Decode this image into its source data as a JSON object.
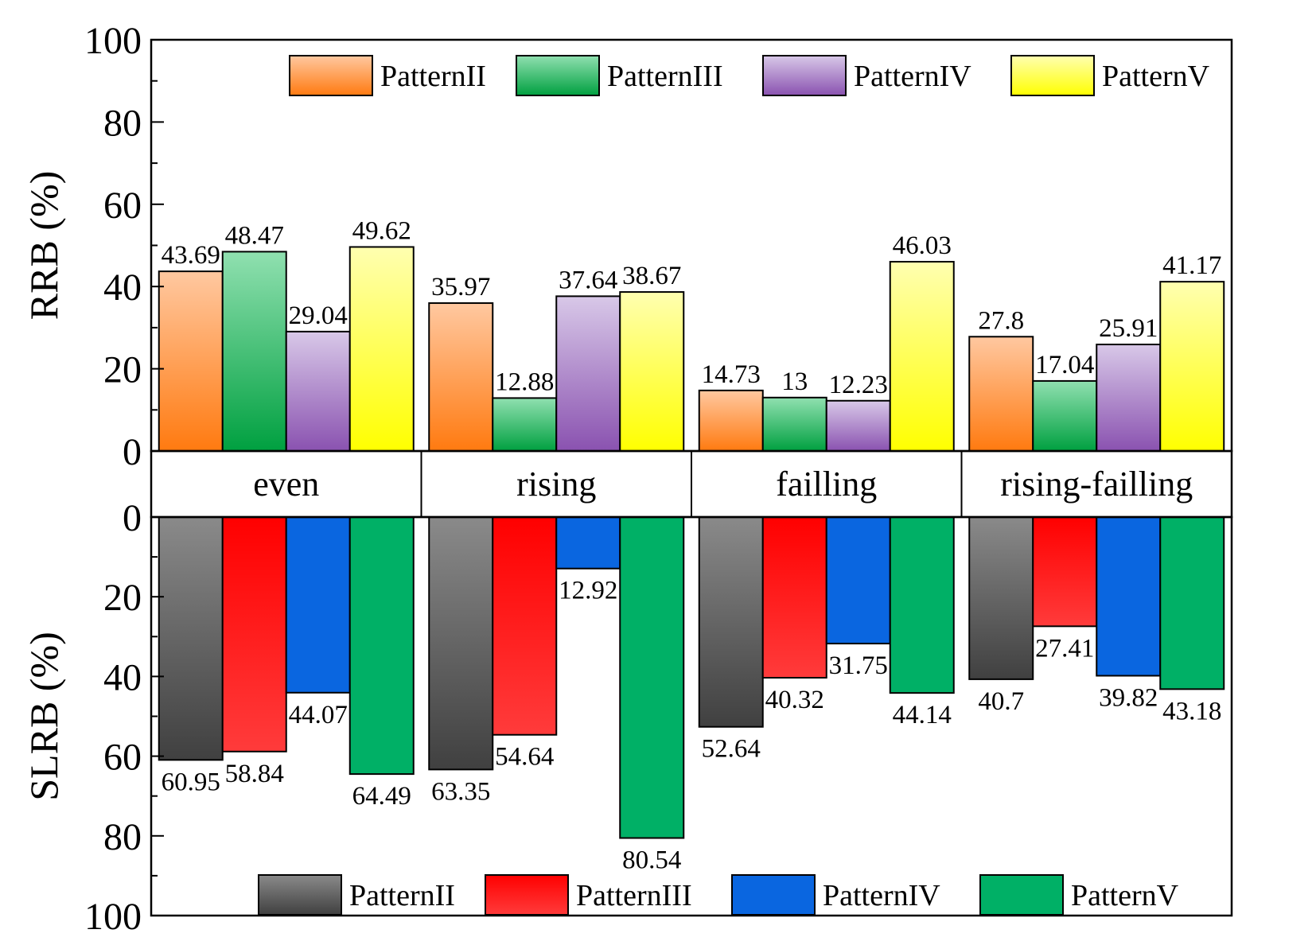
{
  "chart_data": [
    {
      "type": "bar",
      "panel": "top",
      "ylabel": "RRB (%)",
      "ylim": [
        0,
        100
      ],
      "yticks": [
        0,
        20,
        40,
        60,
        80,
        100
      ],
      "categories": [
        "even",
        "rising",
        "failling",
        "rising-failling"
      ],
      "series": [
        {
          "name": "PatternII",
          "values": [
            43.69,
            35.97,
            14.73,
            27.8
          ],
          "labels": [
            "43.69",
            "35.97",
            "14.73",
            "27.8"
          ],
          "gradient": [
            "#ff7a10",
            "#ffc8a0"
          ]
        },
        {
          "name": "PatternIII",
          "values": [
            48.47,
            12.88,
            13,
            17.04
          ],
          "labels": [
            "48.47",
            "12.88",
            "13",
            "17.04"
          ],
          "gradient": [
            "#00a040",
            "#90e0b0"
          ]
        },
        {
          "name": "PatternIV",
          "values": [
            29.04,
            37.64,
            12.23,
            25.91
          ],
          "labels": [
            "29.04",
            "37.64",
            "12.23",
            "25.91"
          ],
          "gradient": [
            "#8a52b0",
            "#d8c8e8"
          ]
        },
        {
          "name": "PatternV",
          "values": [
            49.62,
            38.67,
            46.03,
            41.17
          ],
          "labels": [
            "49.62",
            "38.67",
            "46.03",
            "41.17"
          ],
          "gradient": [
            "#ffff00",
            "#ffffb0"
          ]
        }
      ],
      "legend": "top"
    },
    {
      "type": "bar",
      "panel": "bottom",
      "ylabel": "SLRB (%)",
      "ylim": [
        0,
        100
      ],
      "yticks": [
        0,
        20,
        40,
        60,
        80,
        100
      ],
      "y_inverted": true,
      "categories": [
        "even",
        "rising",
        "failling",
        "rising-failling"
      ],
      "series": [
        {
          "name": "PatternII",
          "values": [
            60.95,
            63.35,
            52.64,
            40.7
          ],
          "labels": [
            "60.95",
            "63.35",
            "52.64",
            "40.7"
          ],
          "gradient": [
            "#404040",
            "#8a8a8a"
          ]
        },
        {
          "name": "PatternIII",
          "values": [
            58.84,
            54.64,
            40.32,
            27.41
          ],
          "labels": [
            "58.84",
            "54.64",
            "40.32",
            "27.41"
          ],
          "gradient": [
            "#ff3b3b",
            "#ff0000"
          ]
        },
        {
          "name": "PatternIV",
          "values": [
            44.07,
            12.92,
            31.75,
            39.82
          ],
          "labels": [
            "44.07",
            "12.92",
            "31.75",
            "39.82"
          ],
          "gradient": [
            "#0a66e0",
            "#0a66e0"
          ]
        },
        {
          "name": "PatternV",
          "values": [
            64.49,
            80.54,
            44.14,
            43.18
          ],
          "labels": [
            "64.49",
            "80.54",
            "44.14",
            "43.18"
          ],
          "gradient": [
            "#00b066",
            "#00b066"
          ]
        }
      ],
      "legend": "bottom"
    }
  ]
}
